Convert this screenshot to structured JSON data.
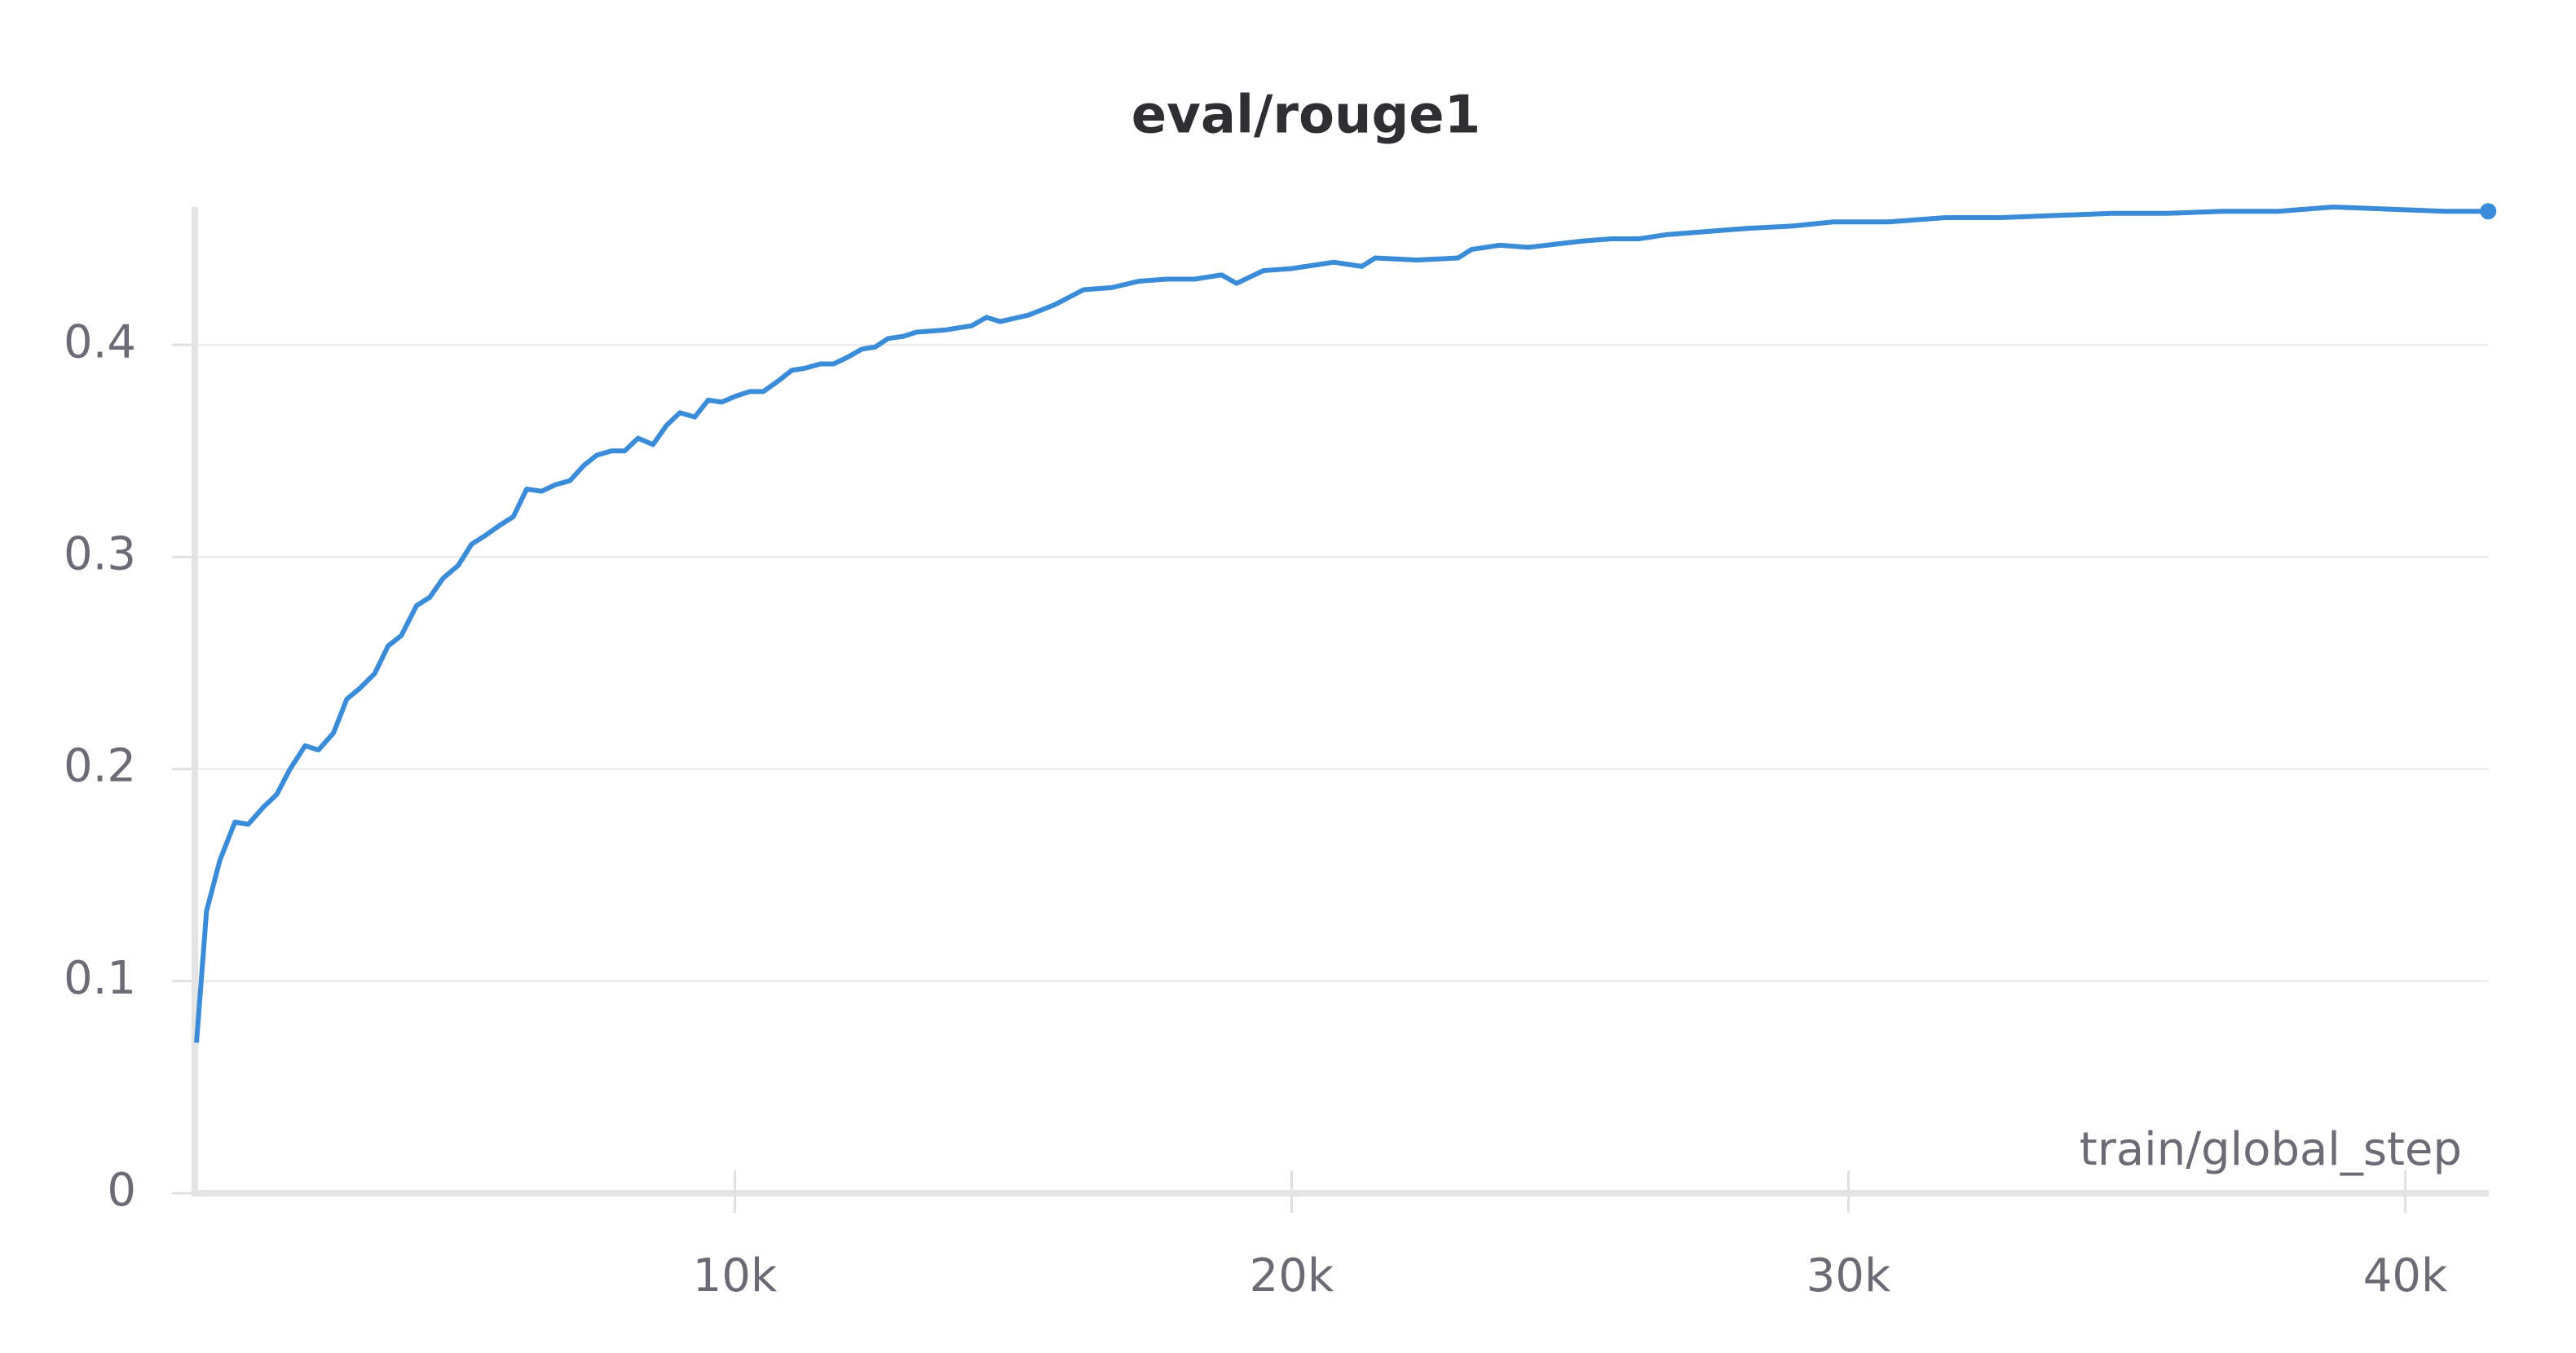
{
  "chart_data": {
    "type": "line",
    "title": "eval/rouge1",
    "x_label": "train/global_step",
    "x": [
      330,
      510,
      750,
      1020,
      1260,
      1530,
      1770,
      2010,
      2280,
      2520,
      2790,
      3030,
      3260,
      3530,
      3770,
      4010,
      4280,
      4520,
      4760,
      5030,
      5270,
      5510,
      5780,
      6020,
      6260,
      6530,
      6770,
      7040,
      7280,
      7520,
      7780,
      8020,
      8260,
      8530,
      8770,
      9010,
      9280,
      9520,
      9760,
      10030,
      10270,
      10510,
      10780,
      11020,
      11260,
      11530,
      11770,
      12010,
      12280,
      12520,
      12750,
      13020,
      13260,
      13770,
      14250,
      14520,
      14760,
      15270,
      15750,
      16260,
      16770,
      17250,
      17750,
      18260,
      18740,
      19010,
      19490,
      20000,
      20510,
      20750,
      21260,
      21500,
      22250,
      22990,
      23230,
      23740,
      24250,
      25240,
      25750,
      26230,
      26740,
      27720,
      28230,
      28980,
      29730,
      30720,
      31740,
      32730,
      33710,
      34730,
      35720,
      36710,
      37720,
      38710,
      39700,
      40720,
      41490
    ],
    "series": [
      {
        "name": "eval/rouge1",
        "color": "#3a8bd8",
        "values": [
          0.071,
          0.133,
          0.157,
          0.175,
          0.174,
          0.182,
          0.188,
          0.2,
          0.211,
          0.209,
          0.217,
          0.233,
          0.238,
          0.245,
          0.258,
          0.263,
          0.277,
          0.281,
          0.29,
          0.296,
          0.306,
          0.31,
          0.315,
          0.319,
          0.332,
          0.331,
          0.334,
          0.336,
          0.343,
          0.348,
          0.35,
          0.35,
          0.356,
          0.353,
          0.362,
          0.368,
          0.366,
          0.374,
          0.373,
          0.376,
          0.378,
          0.378,
          0.383,
          0.388,
          0.389,
          0.391,
          0.391,
          0.394,
          0.398,
          0.399,
          0.403,
          0.404,
          0.406,
          0.407,
          0.409,
          0.413,
          0.411,
          0.414,
          0.419,
          0.426,
          0.427,
          0.43,
          0.431,
          0.431,
          0.433,
          0.429,
          0.435,
          0.436,
          0.438,
          0.439,
          0.437,
          0.441,
          0.44,
          0.441,
          0.445,
          0.447,
          0.446,
          0.449,
          0.45,
          0.45,
          0.452,
          0.454,
          0.455,
          0.456,
          0.458,
          0.458,
          0.46,
          0.46,
          0.461,
          0.462,
          0.462,
          0.463,
          0.463,
          0.465,
          0.464,
          0.463,
          0.463
        ]
      }
    ],
    "xlim": [
      300,
      41500
    ],
    "ylim": [
      0,
      0.465
    ],
    "xticks": [
      {
        "value": 10000,
        "label": "10k"
      },
      {
        "value": 20000,
        "label": "20k"
      },
      {
        "value": 30000,
        "label": "30k"
      },
      {
        "value": 40000,
        "label": "40k"
      }
    ],
    "yticks": [
      0,
      0.1,
      0.2,
      0.3,
      0.4
    ],
    "grid": true
  }
}
